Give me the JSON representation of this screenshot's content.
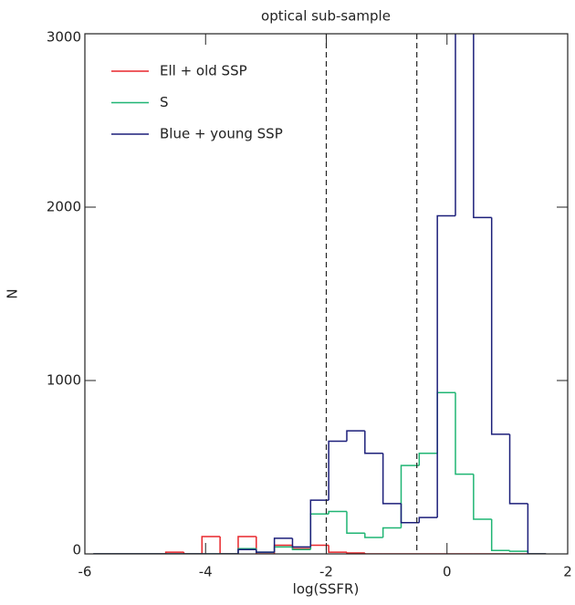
{
  "chart_data": {
    "type": "step-histogram",
    "title": "optical sub-sample",
    "x_label": "log(SSFR)",
    "y_label": "N",
    "bins": [
      -5.86,
      -5.56,
      -5.26,
      -4.96,
      -4.66,
      -4.36,
      -4.06,
      -3.76,
      -3.46,
      -3.16,
      -2.86,
      -2.56,
      -2.26,
      -1.96,
      -1.66,
      -1.36,
      -1.06,
      -0.76,
      -0.46,
      -0.16,
      0.14,
      0.44,
      0.74,
      1.04,
      1.34,
      1.64
    ],
    "series": [
      {
        "name": "Ell + old SSP",
        "color": "#e8262b",
        "values": [
          0,
          0,
          0,
          0,
          10,
          0,
          100,
          0,
          100,
          0,
          50,
          30,
          50,
          10,
          5,
          0,
          0,
          0,
          0,
          0,
          0,
          0,
          0,
          0,
          0
        ]
      },
      {
        "name": "S",
        "color": "#1fb573",
        "values": [
          0,
          0,
          0,
          0,
          0,
          0,
          0,
          0,
          30,
          10,
          40,
          25,
          230,
          245,
          120,
          95,
          150,
          510,
          580,
          930,
          460,
          200,
          20,
          15,
          0
        ]
      },
      {
        "name": "Blue + young SSP",
        "color": "#1c1f7a",
        "values": [
          0,
          0,
          0,
          0,
          0,
          0,
          0,
          0,
          25,
          10,
          90,
          40,
          310,
          650,
          710,
          580,
          290,
          180,
          210,
          1950,
          3300,
          1940,
          690,
          290,
          0
        ]
      }
    ],
    "vlines": [
      -2,
      -0.5
    ],
    "xlim": [
      -6,
      2
    ],
    "ylim": [
      0,
      3000
    ],
    "xticks": [
      -6,
      -4,
      -2,
      0,
      2
    ],
    "yticks": [
      0,
      1000,
      2000,
      3000
    ],
    "legend": "upper-left"
  }
}
